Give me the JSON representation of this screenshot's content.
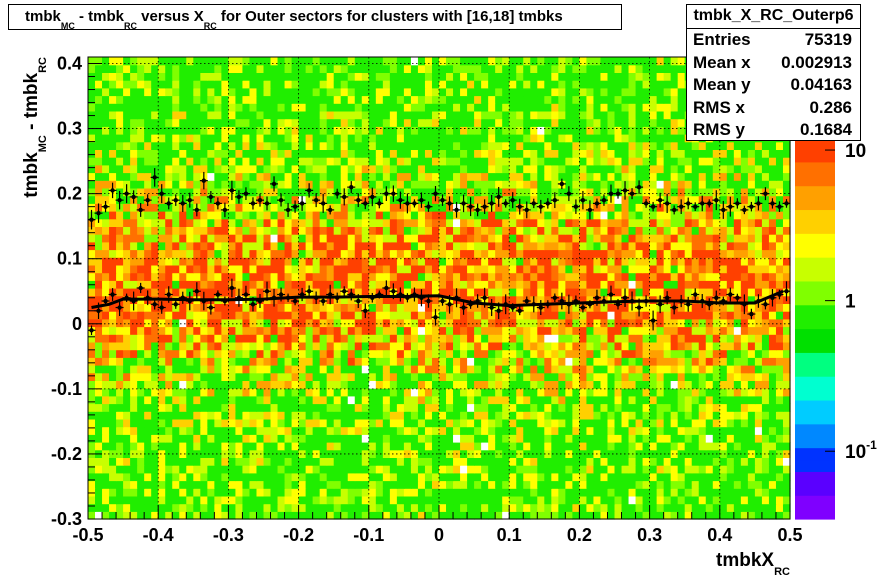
{
  "title": {
    "p1": "tmbk",
    "s1": "MC",
    "p2": " - tmbk",
    "s2": "RC",
    "p3": " versus X",
    "s3": "RC",
    "p4": " for Outer sectors for clusters with [16,18] tmbks"
  },
  "stats": {
    "name": "tmbk_X_RC_Outerp6",
    "rows": [
      {
        "label": "Entries",
        "value": "75319"
      },
      {
        "label": "Mean x",
        "value": "0.002913"
      },
      {
        "label": "Mean y",
        "value": "0.04163"
      },
      {
        "label": "RMS x",
        "value": "0.286"
      },
      {
        "label": "RMS y",
        "value": "0.1684"
      }
    ]
  },
  "colors": {
    "palette": [
      "#7f00ff",
      "#5a00ff",
      "#0033ff",
      "#0088ff",
      "#00ccff",
      "#00ffd0",
      "#00ff80",
      "#00e000",
      "#20ee00",
      "#80ff00",
      "#c8ff00",
      "#ffff00",
      "#ffd000",
      "#ffa000",
      "#ff7000",
      "#ff4000"
    ],
    "markers": "#000000",
    "mean_line": "#000000"
  },
  "chart_data": {
    "type": "heatmap",
    "title": "tmbk_MC - tmbk_RC versus X_RC for Outer sectors for clusters with [16,18] tmbks",
    "xlabel": "tmbkX",
    "xlabel_sub": "RC",
    "ylabel": "tmbk",
    "ylabel_sub1": "MC",
    "ylabel_mid": " - tmbk",
    "ylabel_sub2": "RC",
    "xlim": [
      -0.5,
      0.5
    ],
    "ylim": [
      -0.3,
      0.41
    ],
    "x_ticks": [
      "-0.5",
      "-0.4",
      "-0.3",
      "-0.2",
      "-0.1",
      "0",
      "0.1",
      "0.2",
      "0.3",
      "0.4",
      "0.5"
    ],
    "x_tick_values": [
      -0.5,
      -0.4,
      -0.3,
      -0.2,
      -0.1,
      0,
      0.1,
      0.2,
      0.3,
      0.4,
      0.5
    ],
    "y_ticks": [
      "-0.3",
      "-0.2",
      "-0.1",
      "0",
      "0.1",
      "0.2",
      "0.3",
      "0.4"
    ],
    "y_tick_values": [
      -0.3,
      -0.2,
      -0.1,
      0,
      0.1,
      0.2,
      0.3,
      0.4
    ],
    "z_scale": "log",
    "z_ticks": [
      "10",
      "1",
      "10"
    ],
    "z_tick_sups": [
      "",
      "",
      "-1"
    ],
    "z_tick_values": [
      10,
      1,
      0.1
    ],
    "grid": true,
    "bins_x": 100,
    "bins_y": 60,
    "mean_profile": {
      "x": [
        -0.495,
        -0.47,
        -0.45,
        -0.4,
        -0.35,
        -0.3,
        -0.25,
        -0.2,
        -0.15,
        -0.1,
        -0.05,
        0,
        0.05,
        0.1,
        0.15,
        0.2,
        0.25,
        0.3,
        0.35,
        0.4,
        0.45,
        0.49
      ],
      "y": [
        0.025,
        0.03,
        0.038,
        0.038,
        0.037,
        0.037,
        0.038,
        0.041,
        0.041,
        0.042,
        0.042,
        0.043,
        0.032,
        0.028,
        0.03,
        0.032,
        0.034,
        0.035,
        0.035,
        0.032,
        0.032,
        0.05
      ]
    },
    "points_mean": {
      "x": [
        -0.495,
        -0.485,
        -0.475,
        -0.465,
        -0.455,
        -0.445,
        -0.435,
        -0.425,
        -0.415,
        -0.405,
        -0.395,
        -0.385,
        -0.375,
        -0.365,
        -0.355,
        -0.345,
        -0.335,
        -0.325,
        -0.315,
        -0.305,
        -0.295,
        -0.285,
        -0.275,
        -0.265,
        -0.255,
        -0.245,
        -0.235,
        -0.225,
        -0.215,
        -0.205,
        -0.195,
        -0.185,
        -0.175,
        -0.165,
        -0.155,
        -0.145,
        -0.135,
        -0.125,
        -0.115,
        -0.105,
        -0.095,
        -0.085,
        -0.075,
        -0.065,
        -0.055,
        -0.045,
        -0.035,
        -0.025,
        -0.015,
        -0.005,
        0.005,
        0.015,
        0.025,
        0.035,
        0.045,
        0.055,
        0.065,
        0.075,
        0.085,
        0.095,
        0.105,
        0.115,
        0.125,
        0.135,
        0.145,
        0.155,
        0.165,
        0.175,
        0.185,
        0.195,
        0.205,
        0.215,
        0.225,
        0.235,
        0.245,
        0.255,
        0.265,
        0.275,
        0.285,
        0.295,
        0.305,
        0.315,
        0.325,
        0.335,
        0.345,
        0.355,
        0.365,
        0.375,
        0.385,
        0.395,
        0.405,
        0.415,
        0.425,
        0.435,
        0.445,
        0.455,
        0.465,
        0.475,
        0.485,
        0.495
      ],
      "y": [
        -0.01,
        0.02,
        0.035,
        0.045,
        0.025,
        0.04,
        0.035,
        0.055,
        0.04,
        0.03,
        0.025,
        0.045,
        0.03,
        0.04,
        0.035,
        0.05,
        0.035,
        0.025,
        0.045,
        0.035,
        0.055,
        0.04,
        0.045,
        0.03,
        0.035,
        0.05,
        0.04,
        0.045,
        0.04,
        0.035,
        0.045,
        0.05,
        0.04,
        0.035,
        0.045,
        0.04,
        0.05,
        0.045,
        0.035,
        0.02,
        0.04,
        0.045,
        0.055,
        0.05,
        0.045,
        0.04,
        0.045,
        0.04,
        0.035,
        0.01,
        0.035,
        0.03,
        0.04,
        0.025,
        0.03,
        0.035,
        0.04,
        0.025,
        0.02,
        0.03,
        0.025,
        0.02,
        0.035,
        0.03,
        0.025,
        0.03,
        0.04,
        0.035,
        0.03,
        0.035,
        0.025,
        0.03,
        0.04,
        0.035,
        0.045,
        0.03,
        0.04,
        0.035,
        0.025,
        0.035,
        0.005,
        0.03,
        0.04,
        0.025,
        0.035,
        0.03,
        0.045,
        0.035,
        0.03,
        0.04,
        0.035,
        0.045,
        0.04,
        0.03,
        0.015,
        0.035,
        0.03,
        0.04,
        0.045,
        0.05
      ]
    },
    "points_upper": {
      "x": [
        -0.495,
        -0.485,
        -0.475,
        -0.465,
        -0.455,
        -0.445,
        -0.435,
        -0.425,
        -0.415,
        -0.405,
        -0.395,
        -0.385,
        -0.375,
        -0.365,
        -0.355,
        -0.345,
        -0.335,
        -0.325,
        -0.315,
        -0.305,
        -0.295,
        -0.285,
        -0.275,
        -0.265,
        -0.255,
        -0.245,
        -0.235,
        -0.225,
        -0.215,
        -0.205,
        -0.195,
        -0.185,
        -0.175,
        -0.165,
        -0.155,
        -0.145,
        -0.135,
        -0.125,
        -0.115,
        -0.105,
        -0.095,
        -0.085,
        -0.075,
        -0.065,
        -0.055,
        -0.045,
        -0.035,
        -0.025,
        -0.015,
        -0.005,
        0.005,
        0.015,
        0.025,
        0.035,
        0.045,
        0.055,
        0.065,
        0.075,
        0.085,
        0.095,
        0.105,
        0.115,
        0.125,
        0.135,
        0.145,
        0.155,
        0.165,
        0.175,
        0.185,
        0.195,
        0.205,
        0.215,
        0.225,
        0.235,
        0.245,
        0.255,
        0.265,
        0.275,
        0.285,
        0.295,
        0.305,
        0.315,
        0.325,
        0.335,
        0.345,
        0.355,
        0.365,
        0.375,
        0.385,
        0.395,
        0.405,
        0.415,
        0.425,
        0.435,
        0.445,
        0.455,
        0.465,
        0.475,
        0.485,
        0.495
      ],
      "y": [
        0.16,
        0.17,
        0.18,
        0.205,
        0.19,
        0.2,
        0.195,
        0.175,
        0.19,
        0.225,
        0.2,
        0.185,
        0.19,
        0.185,
        0.19,
        0.175,
        0.22,
        0.195,
        0.185,
        0.175,
        0.205,
        0.195,
        0.2,
        0.185,
        0.19,
        0.185,
        0.215,
        0.19,
        0.175,
        0.18,
        0.185,
        0.205,
        0.19,
        0.185,
        0.175,
        0.2,
        0.195,
        0.21,
        0.19,
        0.185,
        0.195,
        0.185,
        0.2,
        0.2,
        0.19,
        0.185,
        0.185,
        0.19,
        0.18,
        0.2,
        0.19,
        0.185,
        0.175,
        0.185,
        0.18,
        0.175,
        0.18,
        0.185,
        0.195,
        0.185,
        0.19,
        0.18,
        0.175,
        0.185,
        0.18,
        0.185,
        0.19,
        0.215,
        0.2,
        0.18,
        0.19,
        0.175,
        0.185,
        0.19,
        0.2,
        0.2,
        0.205,
        0.2,
        0.21,
        0.185,
        0.18,
        0.19,
        0.185,
        0.175,
        0.18,
        0.185,
        0.18,
        0.185,
        0.185,
        0.19,
        0.175,
        0.18,
        0.185,
        0.175,
        0.18,
        0.185,
        0.2,
        0.185,
        0.18,
        0.185
      ]
    }
  }
}
